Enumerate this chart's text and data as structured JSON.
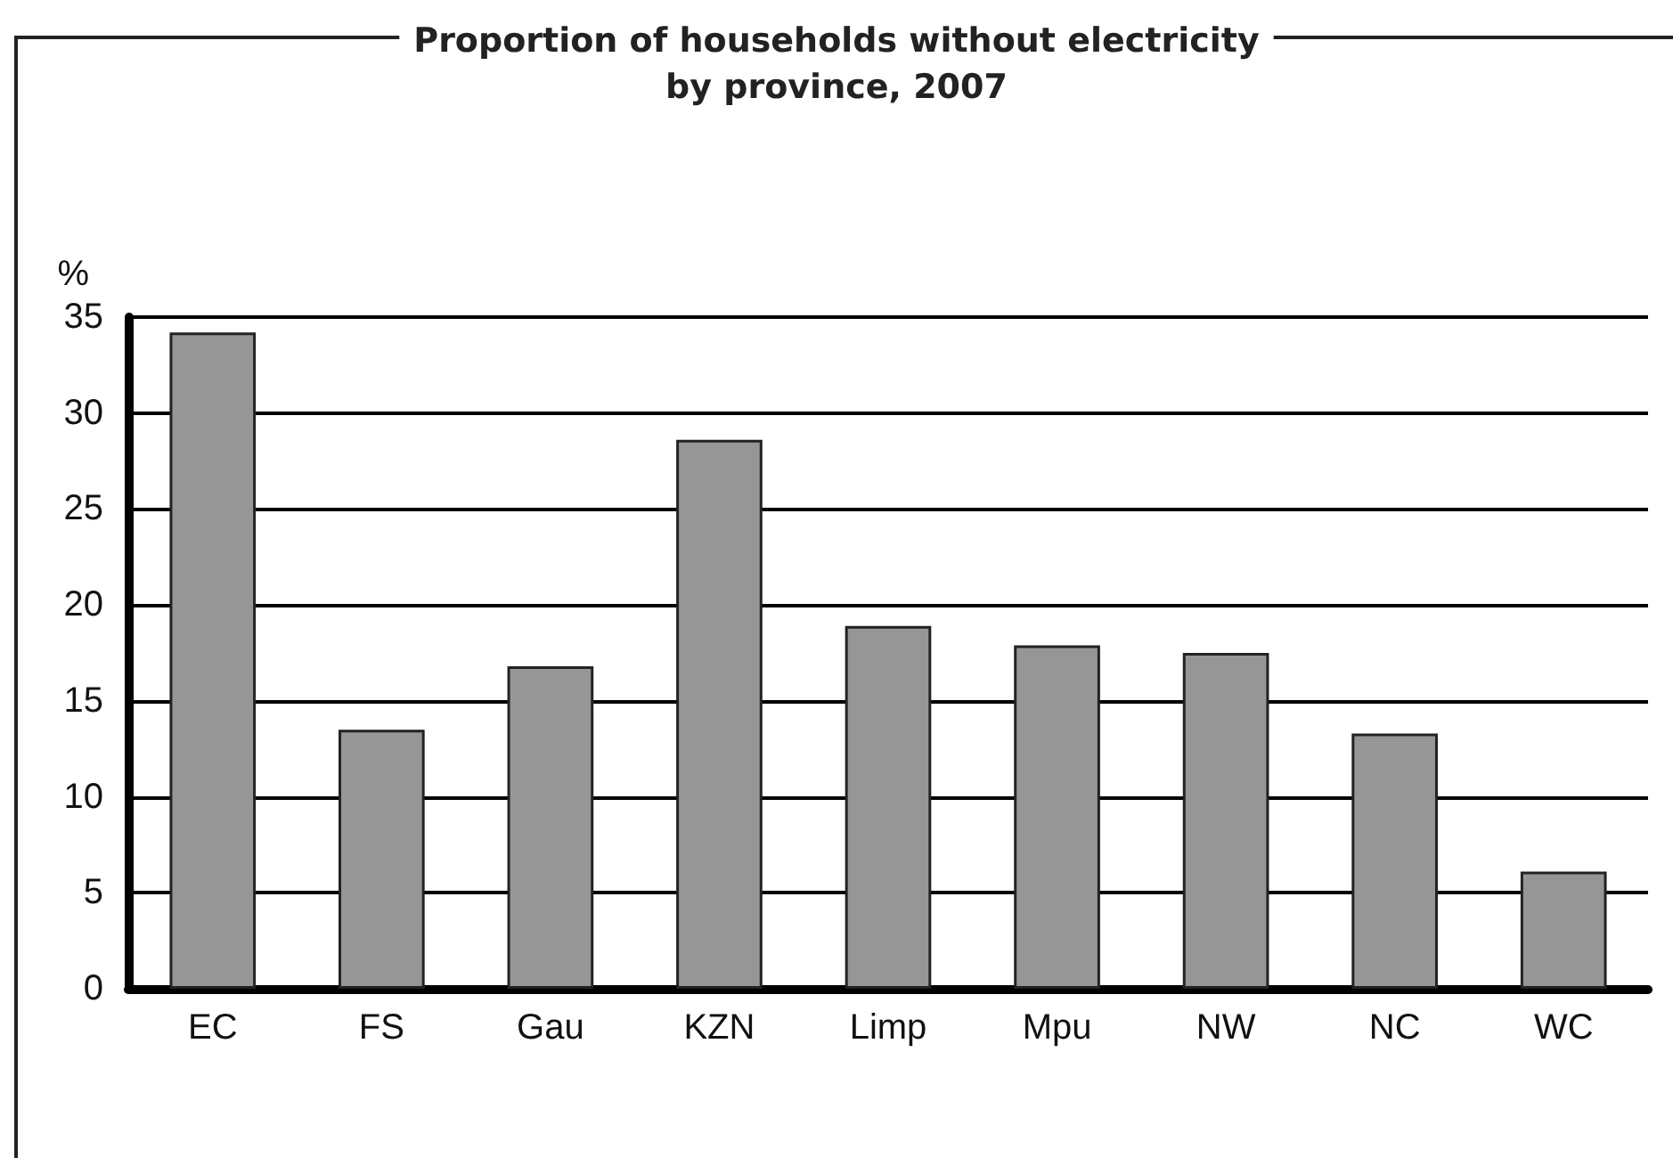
{
  "chart_data": {
    "type": "bar",
    "title": "Proportion of households without electricity\nby province, 2007",
    "ylabel": "%",
    "categories": [
      "EC",
      "FS",
      "Gau",
      "KZN",
      "Limp",
      "Mpu",
      "NW",
      "NC",
      "WC"
    ],
    "values": [
      34.2,
      13.5,
      16.8,
      28.6,
      18.9,
      17.9,
      17.5,
      13.3,
      6.1
    ],
    "color": "#969696",
    "ylim": [
      0,
      35
    ],
    "yticks": [
      0,
      5,
      10,
      15,
      20,
      25,
      30,
      35
    ],
    "grid": "y"
  }
}
